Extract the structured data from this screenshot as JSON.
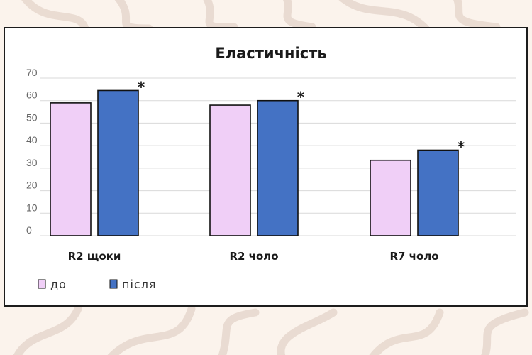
{
  "chart_data": {
    "type": "bar",
    "title": "Еластичність",
    "categories": [
      "R2 щоки",
      "R2 чоло",
      "R7 чоло"
    ],
    "series": [
      {
        "name": "до",
        "color": "#f0cff7",
        "values": [
          59,
          58,
          33.5
        ]
      },
      {
        "name": "після",
        "color": "#4472c4",
        "values": [
          64.5,
          60,
          38
        ]
      }
    ],
    "significance_marker": "*",
    "ylim": [
      0,
      70
    ],
    "yticks": [
      "0",
      "10",
      "20",
      "30",
      "40",
      "50",
      "60",
      "70"
    ],
    "grid": true,
    "legend_position": "bottom-left"
  }
}
